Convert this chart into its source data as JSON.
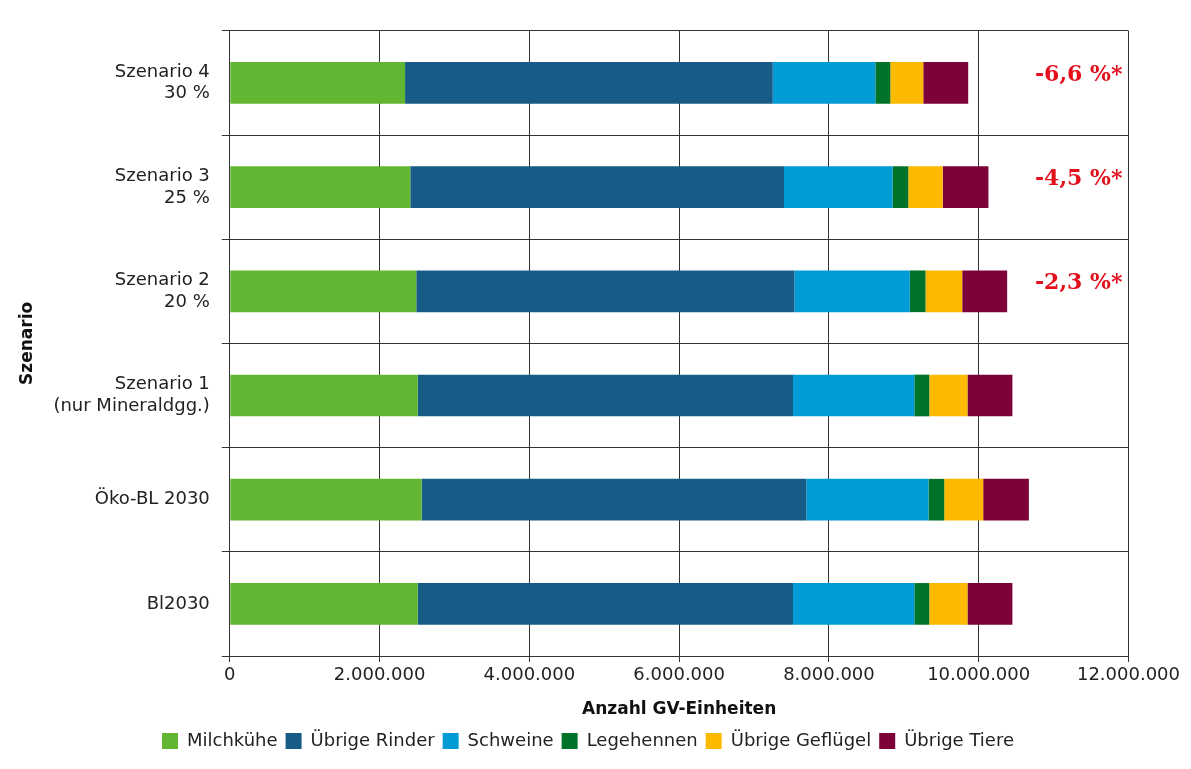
{
  "chart_data": {
    "type": "bar",
    "orientation": "horizontal",
    "stacked": true,
    "xlabel": "Anzahl GV-Einheiten",
    "ylabel": "Szenario",
    "categories": [
      "Szenario 4\n30 %",
      "Szenario 3\n25 %",
      "Szenario 2\n20 %",
      "Szenario 1\n(nur Mineraldgg.)",
      "Öko-BL 2030",
      "Bl2030"
    ],
    "series": [
      {
        "name": "Milchkühe",
        "color": "#63b632",
        "values": [
          2340000,
          2410000,
          2490000,
          2510000,
          2560000,
          2510000
        ]
      },
      {
        "name": "Übrige Rinder",
        "color": "#165c86",
        "values": [
          4910000,
          4990000,
          5050000,
          5010000,
          5140000,
          5010000
        ]
      },
      {
        "name": "Schweine",
        "color": "#019bd6",
        "values": [
          1370000,
          1450000,
          1540000,
          1620000,
          1630000,
          1620000
        ]
      },
      {
        "name": "Legehennen",
        "color": "#017329",
        "values": [
          200000,
          210000,
          210000,
          200000,
          210000,
          200000
        ]
      },
      {
        "name": "Übrige Geflügel",
        "color": "#fbba00",
        "values": [
          440000,
          460000,
          490000,
          510000,
          520000,
          510000
        ]
      },
      {
        "name": "Übrige Tiere",
        "color": "#7d0239",
        "values": [
          600000,
          610000,
          600000,
          600000,
          610000,
          600000
        ]
      }
    ],
    "xlim": [
      0,
      12000000
    ],
    "xticks": [
      0,
      {
        "value": 2000000,
        "label": "2.000.000"
      },
      {
        "value": 4000000,
        "label": "4.000.000"
      },
      {
        "value": 6000000,
        "label": "6.000.000"
      },
      {
        "value": 8000000,
        "label": "8.000.000"
      },
      {
        "value": 10000000,
        "label": "10.000.000"
      },
      {
        "value": 12000000,
        "label": "12.000.000"
      }
    ],
    "annotations": [
      "-6,6 %*",
      "-4,5 %*",
      "-2,3 %*"
    ],
    "grid": true,
    "legend": "bottom"
  }
}
